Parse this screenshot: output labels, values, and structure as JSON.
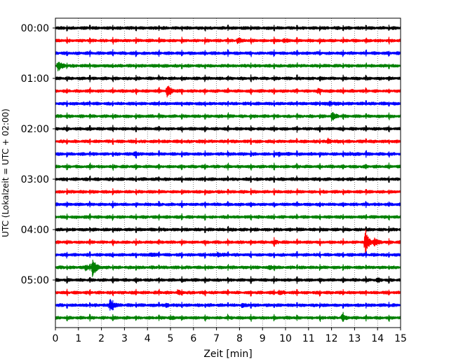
{
  "chart_data": {
    "type": "line",
    "title": "",
    "xlabel": "Zeit  [min]",
    "ylabel": "UTC (Lokalzeit = UTC + 02:00)",
    "xlim": [
      0,
      15
    ],
    "x_ticks": [
      "0",
      "1",
      "2",
      "3",
      "4",
      "5",
      "6",
      "7",
      "8",
      "9",
      "10",
      "11",
      "12",
      "13",
      "14",
      "15"
    ],
    "y_ticks": [
      "00:00",
      "01:00",
      "02:00",
      "03:00",
      "04:00",
      "05:00"
    ],
    "grid": "vertical dotted",
    "row_interval_minutes": 15,
    "colors": [
      "#000000",
      "#ff0000",
      "#0000ff",
      "#008000"
    ],
    "series": [
      {
        "start": "00:00",
        "color": "#000000",
        "events": []
      },
      {
        "start": "00:15",
        "color": "#ff0000",
        "events": [
          {
            "t": 7.9,
            "amp": 0.5
          },
          {
            "t": 9.9,
            "amp": 0.35
          }
        ]
      },
      {
        "start": "00:30",
        "color": "#0000ff",
        "events": []
      },
      {
        "start": "00:45",
        "color": "#008000",
        "events": [
          {
            "t": 0.1,
            "amp": 1.3
          }
        ]
      },
      {
        "start": "01:00",
        "color": "#000000",
        "events": []
      },
      {
        "start": "01:15",
        "color": "#ff0000",
        "events": [
          {
            "t": 4.85,
            "amp": 1.7
          },
          {
            "t": 11.4,
            "amp": 0.3
          }
        ]
      },
      {
        "start": "01:30",
        "color": "#0000ff",
        "events": [
          {
            "t": 11.9,
            "amp": 0.5
          }
        ]
      },
      {
        "start": "01:45",
        "color": "#008000",
        "events": [
          {
            "t": 12.0,
            "amp": 1.0
          }
        ]
      },
      {
        "start": "02:00",
        "color": "#000000",
        "events": []
      },
      {
        "start": "02:15",
        "color": "#ff0000",
        "events": [
          {
            "t": 11.85,
            "amp": 0.5
          }
        ]
      },
      {
        "start": "02:30",
        "color": "#0000ff",
        "events": [
          {
            "t": 3.4,
            "amp": 0.5
          },
          {
            "t": 9.7,
            "amp": 0.4
          },
          {
            "t": 12.8,
            "amp": 0.3
          }
        ]
      },
      {
        "start": "02:45",
        "color": "#008000",
        "events": []
      },
      {
        "start": "03:00",
        "color": "#000000",
        "events": []
      },
      {
        "start": "03:15",
        "color": "#ff0000",
        "events": []
      },
      {
        "start": "03:30",
        "color": "#0000ff",
        "events": []
      },
      {
        "start": "03:45",
        "color": "#008000",
        "events": []
      },
      {
        "start": "04:00",
        "color": "#000000",
        "events": []
      },
      {
        "start": "04:15",
        "color": "#ff0000",
        "events": [
          {
            "t": 9.5,
            "amp": 0.4
          },
          {
            "t": 13.45,
            "amp": 3.2
          },
          {
            "t": 13.85,
            "amp": 0.8
          }
        ]
      },
      {
        "start": "04:30",
        "color": "#0000ff",
        "events": [
          {
            "t": 4.1,
            "amp": 0.4
          },
          {
            "t": 7.05,
            "amp": 0.5
          }
        ]
      },
      {
        "start": "04:45",
        "color": "#008000",
        "events": [
          {
            "t": 1.3,
            "amp": 0.6
          },
          {
            "t": 1.6,
            "amp": 2.8
          },
          {
            "t": 9.3,
            "amp": 0.4
          }
        ]
      },
      {
        "start": "05:00",
        "color": "#000000",
        "events": [
          {
            "t": 14.0,
            "amp": 0.3
          }
        ]
      },
      {
        "start": "05:15",
        "color": "#ff0000",
        "events": [
          {
            "t": 5.3,
            "amp": 0.4
          },
          {
            "t": 9.7,
            "amp": 0.4
          }
        ]
      },
      {
        "start": "05:30",
        "color": "#0000ff",
        "events": [
          {
            "t": 2.35,
            "amp": 1.5
          },
          {
            "t": 4.8,
            "amp": 0.4
          },
          {
            "t": 8.1,
            "amp": 0.3
          }
        ]
      },
      {
        "start": "05:45",
        "color": "#008000",
        "events": [
          {
            "t": 5.0,
            "amp": 0.3
          },
          {
            "t": 12.45,
            "amp": 0.7
          }
        ]
      }
    ]
  }
}
